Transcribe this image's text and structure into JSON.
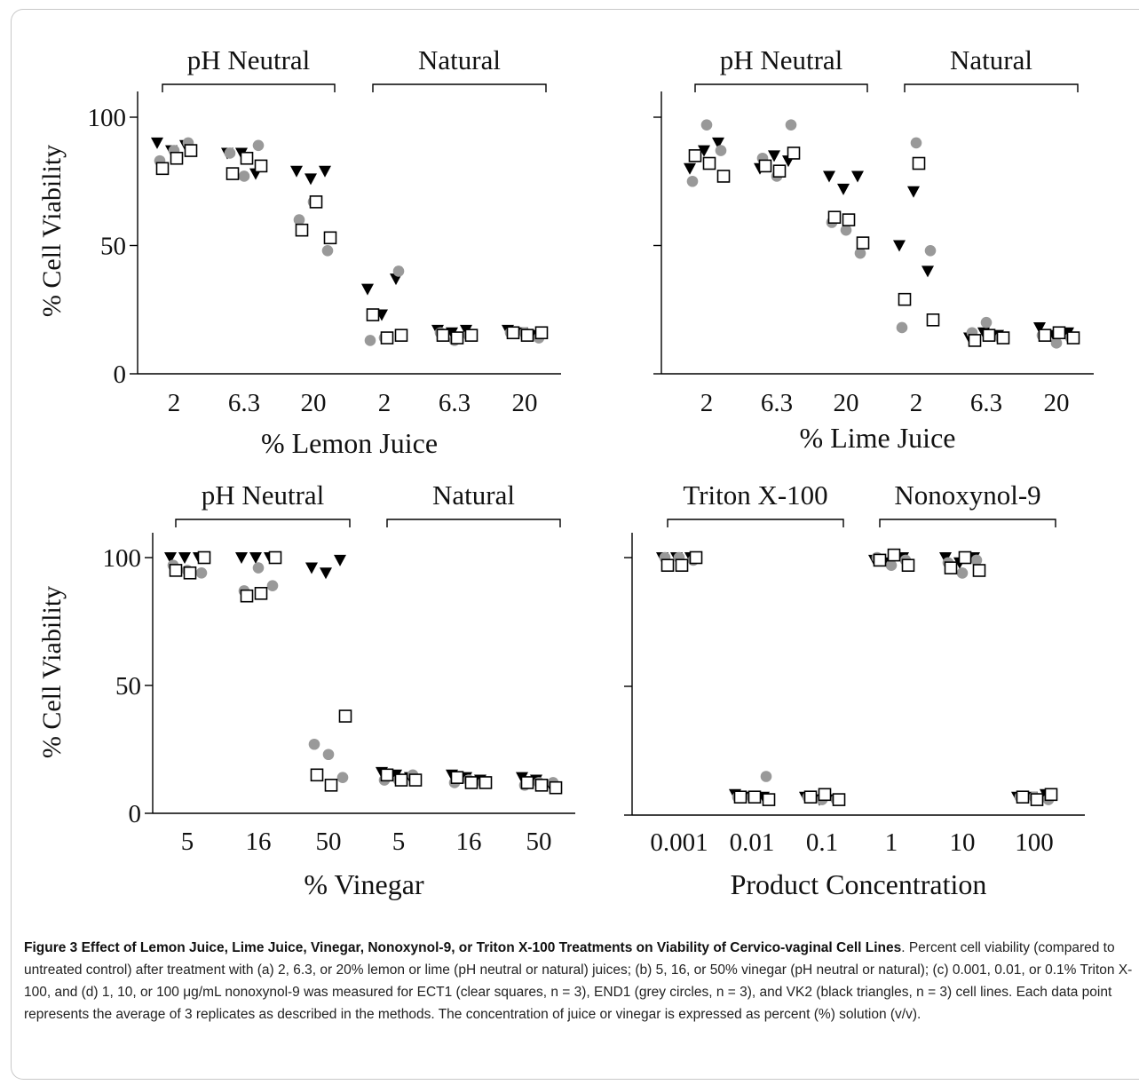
{
  "colors": {
    "ect1": "#ffffff",
    "end1": "#999999",
    "vk2": "#000000",
    "axis": "#000000"
  },
  "chart_data": [
    {
      "id": "a",
      "type": "scatter",
      "ylabel": "% Cell Viability",
      "xlabel": "% Lemon Juice",
      "ylim": [
        0,
        100
      ],
      "yticks": [
        "0",
        "50",
        "100"
      ],
      "ytick_labels_visible": true,
      "categories": [
        "2",
        "6.3",
        "20",
        "2",
        "6.3",
        "20"
      ],
      "groups": [
        {
          "label": "pH Neutral",
          "from": 0,
          "to": 2
        },
        {
          "label": "Natural",
          "from": 3,
          "to": 5
        }
      ],
      "series": [
        {
          "name": "VK2",
          "marker": "triangle-down",
          "values": [
            [
              90,
              87,
              89
            ],
            [
              86,
              86,
              78
            ],
            [
              79,
              76,
              79
            ],
            [
              33,
              23,
              37
            ],
            [
              17,
              16,
              17
            ],
            [
              17,
              16,
              15
            ]
          ]
        },
        {
          "name": "END1",
          "marker": "circle",
          "values": [
            [
              83,
              87,
              90
            ],
            [
              86,
              77,
              89
            ],
            [
              60,
              67,
              48
            ],
            [
              13,
              14,
              40
            ],
            [
              16,
              13,
              15
            ],
            [
              16,
              16,
              14
            ]
          ]
        },
        {
          "name": "ECT1",
          "marker": "square",
          "values": [
            [
              80,
              84,
              87
            ],
            [
              78,
              84,
              81
            ],
            [
              56,
              67,
              53
            ],
            [
              23,
              14,
              15
            ],
            [
              15,
              14,
              15
            ],
            [
              16,
              15,
              16
            ]
          ]
        }
      ]
    },
    {
      "id": "b",
      "type": "scatter",
      "ylabel": "",
      "xlabel": "% Lime Juice",
      "ylim": [
        0,
        100
      ],
      "yticks": [
        "0",
        "50",
        "100"
      ],
      "ytick_labels_visible": false,
      "categories": [
        "2",
        "6.3",
        "20",
        "2",
        "6.3",
        "20"
      ],
      "groups": [
        {
          "label": "pH Neutral",
          "from": 0,
          "to": 2
        },
        {
          "label": "Natural",
          "from": 3,
          "to": 5
        }
      ],
      "series": [
        {
          "name": "VK2",
          "marker": "triangle-down",
          "values": [
            [
              80,
              87,
              90
            ],
            [
              80,
              85,
              83
            ],
            [
              77,
              72,
              77
            ],
            [
              50,
              71,
              40
            ],
            [
              14,
              16,
              15
            ],
            [
              18,
              15,
              16
            ]
          ]
        },
        {
          "name": "END1",
          "marker": "circle",
          "values": [
            [
              75,
              97,
              87
            ],
            [
              84,
              77,
              97
            ],
            [
              59,
              56,
              47
            ],
            [
              18,
              90,
              48
            ],
            [
              16,
              20,
              14
            ],
            [
              15,
              12,
              14
            ]
          ]
        },
        {
          "name": "ECT1",
          "marker": "square",
          "values": [
            [
              85,
              82,
              77
            ],
            [
              81,
              79,
              86
            ],
            [
              61,
              60,
              51
            ],
            [
              29,
              82,
              21
            ],
            [
              13,
              15,
              14
            ],
            [
              15,
              16,
              14
            ]
          ]
        }
      ]
    },
    {
      "id": "c",
      "type": "scatter",
      "ylabel": "% Cell Viability",
      "xlabel": "% Vinegar",
      "ylim": [
        0,
        100
      ],
      "yticks": [
        "0",
        "50",
        "100"
      ],
      "ytick_labels_visible": true,
      "categories": [
        "5",
        "16",
        "50",
        "5",
        "16",
        "50"
      ],
      "groups": [
        {
          "label": "pH Neutral",
          "from": 0,
          "to": 2
        },
        {
          "label": "Natural",
          "from": 3,
          "to": 5
        }
      ],
      "series": [
        {
          "name": "VK2",
          "marker": "triangle-down",
          "values": [
            [
              100,
              100,
              100
            ],
            [
              100,
              100,
              100
            ],
            [
              96,
              94,
              99
            ],
            [
              16,
              15,
              14
            ],
            [
              15,
              14,
              13
            ],
            [
              14,
              13,
              11
            ]
          ]
        },
        {
          "name": "END1",
          "marker": "circle",
          "values": [
            [
              97,
              95,
              94
            ],
            [
              87,
              96,
              89
            ],
            [
              27,
              23,
              14
            ],
            [
              13,
              13,
              15
            ],
            [
              12,
              13,
              12
            ],
            [
              11,
              12,
              12
            ]
          ]
        },
        {
          "name": "ECT1",
          "marker": "square",
          "values": [
            [
              95,
              94,
              100
            ],
            [
              85,
              86,
              100
            ],
            [
              15,
              11,
              38
            ],
            [
              15,
              13,
              13
            ],
            [
              14,
              12,
              12
            ],
            [
              12,
              11,
              10
            ]
          ]
        }
      ]
    },
    {
      "id": "d",
      "type": "scatter",
      "ylabel": "",
      "xlabel": "Product Concentration",
      "ylim": [
        0,
        100
      ],
      "yticks": [
        "0",
        "50",
        "100"
      ],
      "ytick_labels_visible": false,
      "categories": [
        "0.001",
        "0.01",
        "0.1",
        "1",
        "10",
        "100"
      ],
      "groups": [
        {
          "label": "Triton X-100",
          "from": 0,
          "to": 2
        },
        {
          "label": "Nonoxynol-9",
          "from": 3,
          "to": 5
        }
      ],
      "series": [
        {
          "name": "VK2",
          "marker": "triangle-down",
          "values": [
            [
              100,
              100,
              100
            ],
            [
              8,
              7,
              7
            ],
            [
              7,
              6,
              6
            ],
            [
              99,
              98,
              100
            ],
            [
              100,
              98,
              100
            ],
            [
              7,
              7,
              8
            ]
          ]
        },
        {
          "name": "END1",
          "marker": "circle",
          "values": [
            [
              100,
              100,
              99
            ],
            [
              7,
              7,
              15
            ],
            [
              7,
              6,
              6
            ],
            [
              100,
              97,
              99
            ],
            [
              98,
              94,
              99
            ],
            [
              7,
              7,
              6
            ]
          ]
        },
        {
          "name": "ECT1",
          "marker": "square",
          "values": [
            [
              97,
              97,
              100
            ],
            [
              7,
              7,
              6
            ],
            [
              7,
              8,
              6
            ],
            [
              99,
              101,
              97
            ],
            [
              96,
              100,
              95
            ],
            [
              7,
              6,
              8
            ]
          ]
        }
      ]
    }
  ],
  "caption": {
    "title": "Figure 3 Effect of Lemon Juice, Lime Juice, Vinegar, Nonoxynol-9, or Triton X-100 Treatments on Viability of Cervico-vaginal Cell Lines",
    "body": ". Percent cell viability (compared to untreated control) after treatment with (a) 2, 6.3, or 20% lemon or lime (pH neutral or natural) juices; (b) 5, 16, or 50% vinegar (pH neutral or natural); (c) 0.001, 0.01, or 0.1% Triton X-100, and (d) 1, 10, or 100 μg/mL nonoxynol-9 was measured for ECT1 (clear squares, n = 3), END1 (grey circles, n = 3), and VK2 (black triangles, n = 3) cell lines. Each data point represents the average of 3 replicates as described in the methods. The concentration of juice or vinegar is expressed as percent (%) solution (v/v)."
  }
}
